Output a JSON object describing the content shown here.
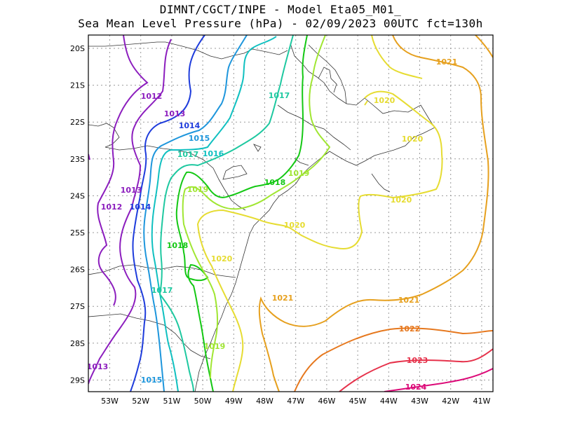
{
  "title_line1": "DIMNT/CGCT/INPE -  Model Eta05_M01_",
  "title_line2": "Sea Mean Level Pressure (hPa) - 02/09/2023 00UTC fct=130h",
  "lon_labels": [
    "53W",
    "52W",
    "51W",
    "50W",
    "49W",
    "48W",
    "47W",
    "46W",
    "45W",
    "44W",
    "43W",
    "42W",
    "41W"
  ],
  "lat_labels": [
    "20S",
    "21S",
    "22S",
    "23S",
    "24S",
    "25S",
    "26S",
    "27S",
    "28S",
    "29S"
  ],
  "contour_labels": [
    {
      "text": "1012",
      "color": "#8c1ebe"
    },
    {
      "text": "1013",
      "color": "#8c1ebe"
    },
    {
      "text": "1014",
      "color": "#1e3cdc"
    },
    {
      "text": "1015",
      "color": "#1e96dc"
    },
    {
      "text": "1016",
      "color": "#10c0c0"
    },
    {
      "text": "1017",
      "color": "#1ec8a0"
    },
    {
      "text": "1018",
      "color": "#14c814"
    },
    {
      "text": "1019",
      "color": "#a0e632"
    },
    {
      "text": "1020",
      "color": "#e6dc32"
    },
    {
      "text": "1021",
      "color": "#e6a01e"
    },
    {
      "text": "1022",
      "color": "#e6781e"
    },
    {
      "text": "1023",
      "color": "#e6324b"
    },
    {
      "text": "1024",
      "color": "#dc0a78"
    }
  ]
}
